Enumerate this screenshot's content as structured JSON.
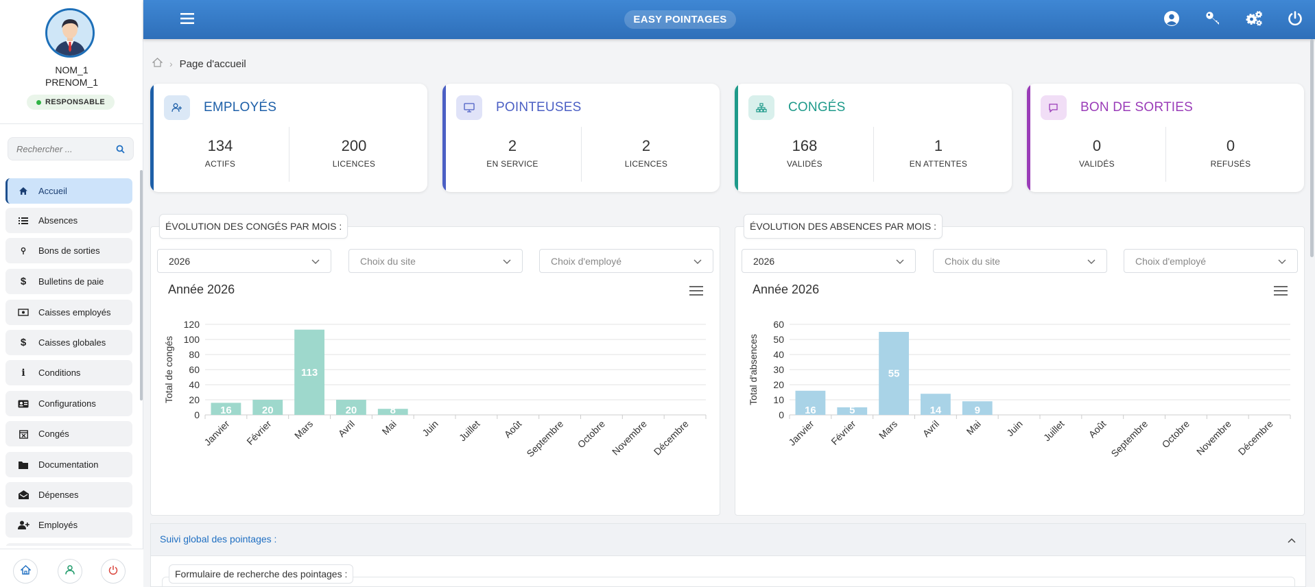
{
  "app": {
    "brand": "EASY POINTAGES"
  },
  "user": {
    "name": "NOM_1",
    "surname": "PRENOM_1",
    "role": "RESPONSABLE"
  },
  "sidebar": {
    "search_placeholder": "Rechercher ...",
    "items": [
      {
        "label": "Accueil",
        "icon": "home-icon",
        "active": true
      },
      {
        "label": "Absences",
        "icon": "list-icon"
      },
      {
        "label": "Bons de sorties",
        "icon": "pin-icon"
      },
      {
        "label": "Bulletins de paie",
        "icon": "dollar-icon"
      },
      {
        "label": "Caisses employés",
        "icon": "cash-icon"
      },
      {
        "label": "Caisses globales",
        "icon": "dollar-icon"
      },
      {
        "label": "Conditions",
        "icon": "info-icon"
      },
      {
        "label": "Configurations",
        "icon": "id-card-icon"
      },
      {
        "label": "Congés",
        "icon": "calendar-icon"
      },
      {
        "label": "Documentation",
        "icon": "folder-icon"
      },
      {
        "label": "Dépenses",
        "icon": "envelope-icon"
      },
      {
        "label": "Employés",
        "icon": "user-plus-icon"
      }
    ]
  },
  "breadcrumb": {
    "current": "Page d'accueil"
  },
  "cards": [
    {
      "title": "EMPLOYÉS",
      "color": "#1d5fa8",
      "stats": [
        {
          "value": "134",
          "label": "ACTIFS"
        },
        {
          "value": "200",
          "label": "LICENCES"
        }
      ]
    },
    {
      "title": "POINTEUSES",
      "color": "#4b5fc4",
      "stats": [
        {
          "value": "2",
          "label": "EN SERVICE"
        },
        {
          "value": "2",
          "label": "LICENCES"
        }
      ]
    },
    {
      "title": "CONGÉS",
      "color": "#1e9a8a",
      "stats": [
        {
          "value": "168",
          "label": "VALIDÉS"
        },
        {
          "value": "1",
          "label": "EN ATTENTES"
        }
      ]
    },
    {
      "title": "BON DE SORTIES",
      "color": "#9a3cb8",
      "stats": [
        {
          "value": "0",
          "label": "VALIDÉS"
        },
        {
          "value": "0",
          "label": "REFUSÉS"
        }
      ]
    }
  ],
  "panels": [
    {
      "title": "ÉVOLUTION DES CONGÉS PAR MOIS :",
      "year_select": "2026",
      "site_placeholder": "Choix du site",
      "employee_placeholder": "Choix d'employé"
    },
    {
      "title": "ÉVOLUTION DES ABSENCES PAR MOIS :",
      "year_select": "2026",
      "site_placeholder": "Choix du site",
      "employee_placeholder": "Choix d'employé"
    }
  ],
  "chart_data": [
    {
      "type": "bar",
      "title": "Année 2026",
      "ylabel": "Total de congés",
      "color": "#9ed8cc",
      "categories": [
        "Janvier",
        "Février",
        "Mars",
        "Avril",
        "Mai",
        "Juin",
        "Juillet",
        "Août",
        "Septembre",
        "Octobre",
        "Novembre",
        "Décembre"
      ],
      "values": [
        16,
        20,
        113,
        20,
        8,
        0,
        0,
        0,
        0,
        0,
        0,
        0
      ],
      "ylim": [
        0,
        120
      ],
      "yticks": [
        0,
        20,
        40,
        60,
        80,
        100,
        120
      ],
      "grid": true
    },
    {
      "type": "bar",
      "title": "Année 2026",
      "ylabel": "Total d'absences",
      "color": "#a9d3e7",
      "categories": [
        "Janvier",
        "Février",
        "Mars",
        "Avril",
        "Mai",
        "Juin",
        "Juillet",
        "Août",
        "Septembre",
        "Octobre",
        "Novembre",
        "Décembre"
      ],
      "values": [
        16,
        5,
        55,
        14,
        9,
        0,
        0,
        0,
        0,
        0,
        0,
        0
      ],
      "ylim": [
        0,
        60
      ],
      "yticks": [
        0,
        10,
        20,
        30,
        40,
        50,
        60
      ],
      "grid": true
    }
  ],
  "bottom": {
    "suivi_title": "Suivi global des pointages :",
    "form_title": "Formulaire de recherche des pointages :"
  }
}
